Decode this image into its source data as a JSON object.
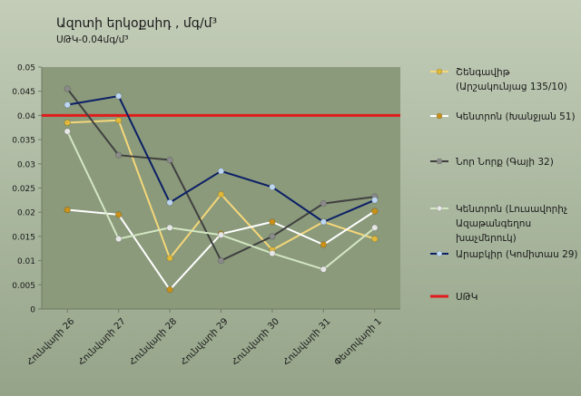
{
  "header": {
    "title": "Ազոտի երկօքսիդ , մգ/մ³",
    "subtitle": "ՍԹԿ-0.04մգ/մ³"
  },
  "chart_data": {
    "type": "line",
    "x": [
      "Հունվարի 26",
      "Հունվարի 27",
      "Հունվարի 28",
      "Հունվարի 29",
      "Հունվարի 30",
      "Հունվարի 31",
      "Փետրվարի 1"
    ],
    "ylim": [
      0,
      0.05
    ],
    "yticks": [
      "0",
      "0.005",
      "0.01",
      "0.015",
      "0.02",
      "0.025",
      "0.03",
      "0.035",
      "0.04",
      "0.045",
      "0.05"
    ],
    "grid": false,
    "legend_position": "right",
    "series": [
      {
        "name": "Շենգավիթ (Արշակունյաց 135/10)",
        "color": "#f5d77a",
        "marker": "#e0b83a",
        "values": [
          0.0385,
          0.039,
          0.0105,
          0.0237,
          0.0122,
          0.018,
          0.0145
        ]
      },
      {
        "name": "Կենտրոն (Խանջյան 51)",
        "color": "#ffffff",
        "marker": "#c9901a",
        "values": [
          0.0205,
          0.0195,
          0.004,
          0.0155,
          0.018,
          0.0133,
          0.0202
        ]
      },
      {
        "name": "Նոր Նորք (Գայի 32)",
        "color": "#404040",
        "marker": "#8a8a8a",
        "values": [
          0.0455,
          0.0318,
          0.0308,
          0.01,
          0.015,
          0.0218,
          0.0232
        ]
      },
      {
        "name": "Կենտրոն (Լուսավորիչ Ազաթանգեղոս խաչմերուկ)",
        "color": "#d3e7c3",
        "marker": "#e6e6e6",
        "values": [
          0.0367,
          0.0145,
          0.0168,
          0.0153,
          0.0115,
          0.0082,
          0.0168
        ]
      },
      {
        "name": "Արաբկիր (Կոմիտաս 29)",
        "color": "#0b1f66",
        "marker": "#bcd6f2",
        "values": [
          0.0422,
          0.044,
          0.022,
          0.0285,
          0.0252,
          0.018,
          0.0225
        ]
      }
    ],
    "reference_line": {
      "name": "ՍԹԿ",
      "value": 0.04,
      "color": "#e01b1b"
    }
  }
}
